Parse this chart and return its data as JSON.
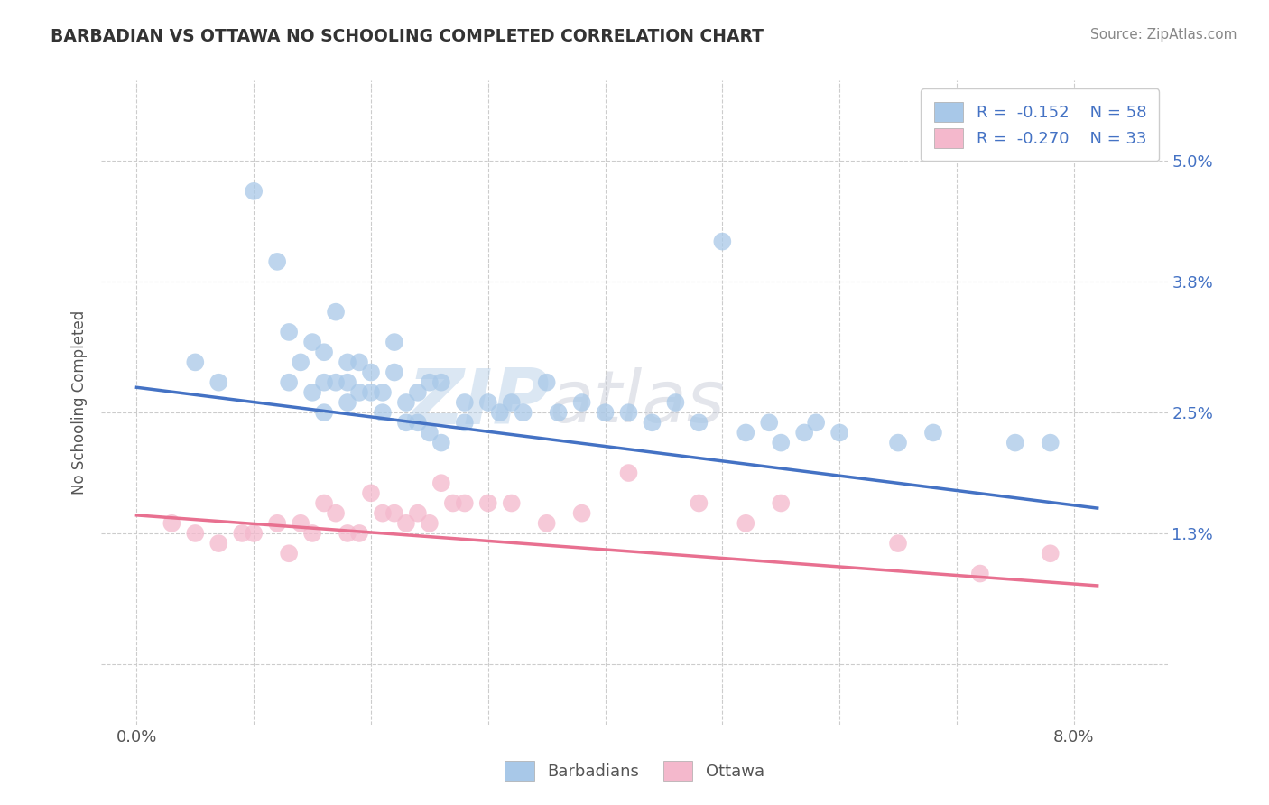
{
  "title": "BARBADIAN VS OTTAWA NO SCHOOLING COMPLETED CORRELATION CHART",
  "source": "Source: ZipAtlas.com",
  "ylabel": "No Schooling Completed",
  "watermark": "ZIPatlas",
  "x_ticks": [
    0.0,
    0.01,
    0.02,
    0.03,
    0.04,
    0.05,
    0.06,
    0.07,
    0.08
  ],
  "y_ticks": [
    0.0,
    0.013,
    0.025,
    0.038,
    0.05
  ],
  "y_tick_labels": [
    "",
    "1.3%",
    "2.5%",
    "3.8%",
    "5.0%"
  ],
  "xlim": [
    -0.003,
    0.088
  ],
  "ylim": [
    -0.006,
    0.058
  ],
  "legend_entry1": "R =  -0.152    N = 58",
  "legend_entry2": "R =  -0.270    N = 33",
  "legend_label1": "Barbadians",
  "legend_label2": "Ottawa",
  "color_blue": "#a8c8e8",
  "color_pink": "#f4b8cc",
  "line_blue": "#4472c4",
  "line_pink": "#e87090",
  "background_color": "#ffffff",
  "grid_color": "#cccccc",
  "blue_scatter_x": [
    0.005,
    0.007,
    0.01,
    0.012,
    0.013,
    0.013,
    0.014,
    0.015,
    0.015,
    0.016,
    0.016,
    0.016,
    0.017,
    0.017,
    0.018,
    0.018,
    0.018,
    0.019,
    0.019,
    0.02,
    0.02,
    0.021,
    0.021,
    0.022,
    0.022,
    0.023,
    0.023,
    0.024,
    0.024,
    0.025,
    0.025,
    0.026,
    0.026,
    0.028,
    0.028,
    0.03,
    0.031,
    0.032,
    0.033,
    0.035,
    0.036,
    0.038,
    0.04,
    0.042,
    0.044,
    0.046,
    0.048,
    0.05,
    0.052,
    0.054,
    0.055,
    0.057,
    0.058,
    0.06,
    0.065,
    0.068,
    0.075,
    0.078
  ],
  "blue_scatter_y": [
    0.03,
    0.028,
    0.047,
    0.04,
    0.033,
    0.028,
    0.03,
    0.032,
    0.027,
    0.031,
    0.028,
    0.025,
    0.035,
    0.028,
    0.03,
    0.028,
    0.026,
    0.03,
    0.027,
    0.029,
    0.027,
    0.027,
    0.025,
    0.032,
    0.029,
    0.026,
    0.024,
    0.027,
    0.024,
    0.028,
    0.023,
    0.028,
    0.022,
    0.026,
    0.024,
    0.026,
    0.025,
    0.026,
    0.025,
    0.028,
    0.025,
    0.026,
    0.025,
    0.025,
    0.024,
    0.026,
    0.024,
    0.042,
    0.023,
    0.024,
    0.022,
    0.023,
    0.024,
    0.023,
    0.022,
    0.023,
    0.022,
    0.022
  ],
  "pink_scatter_x": [
    0.003,
    0.005,
    0.007,
    0.009,
    0.01,
    0.012,
    0.013,
    0.014,
    0.015,
    0.016,
    0.017,
    0.018,
    0.019,
    0.02,
    0.021,
    0.022,
    0.023,
    0.024,
    0.025,
    0.026,
    0.027,
    0.028,
    0.03,
    0.032,
    0.035,
    0.038,
    0.042,
    0.048,
    0.052,
    0.055,
    0.065,
    0.072,
    0.078
  ],
  "pink_scatter_y": [
    0.014,
    0.013,
    0.012,
    0.013,
    0.013,
    0.014,
    0.011,
    0.014,
    0.013,
    0.016,
    0.015,
    0.013,
    0.013,
    0.017,
    0.015,
    0.015,
    0.014,
    0.015,
    0.014,
    0.018,
    0.016,
    0.016,
    0.016,
    0.016,
    0.014,
    0.015,
    0.019,
    0.016,
    0.014,
    0.016,
    0.012,
    0.009,
    0.011
  ],
  "blue_line_x": [
    0.0,
    0.082
  ],
  "blue_line_y": [
    0.0275,
    0.0155
  ],
  "pink_line_x": [
    0.0,
    0.082
  ],
  "pink_line_y": [
    0.0148,
    0.0078
  ]
}
